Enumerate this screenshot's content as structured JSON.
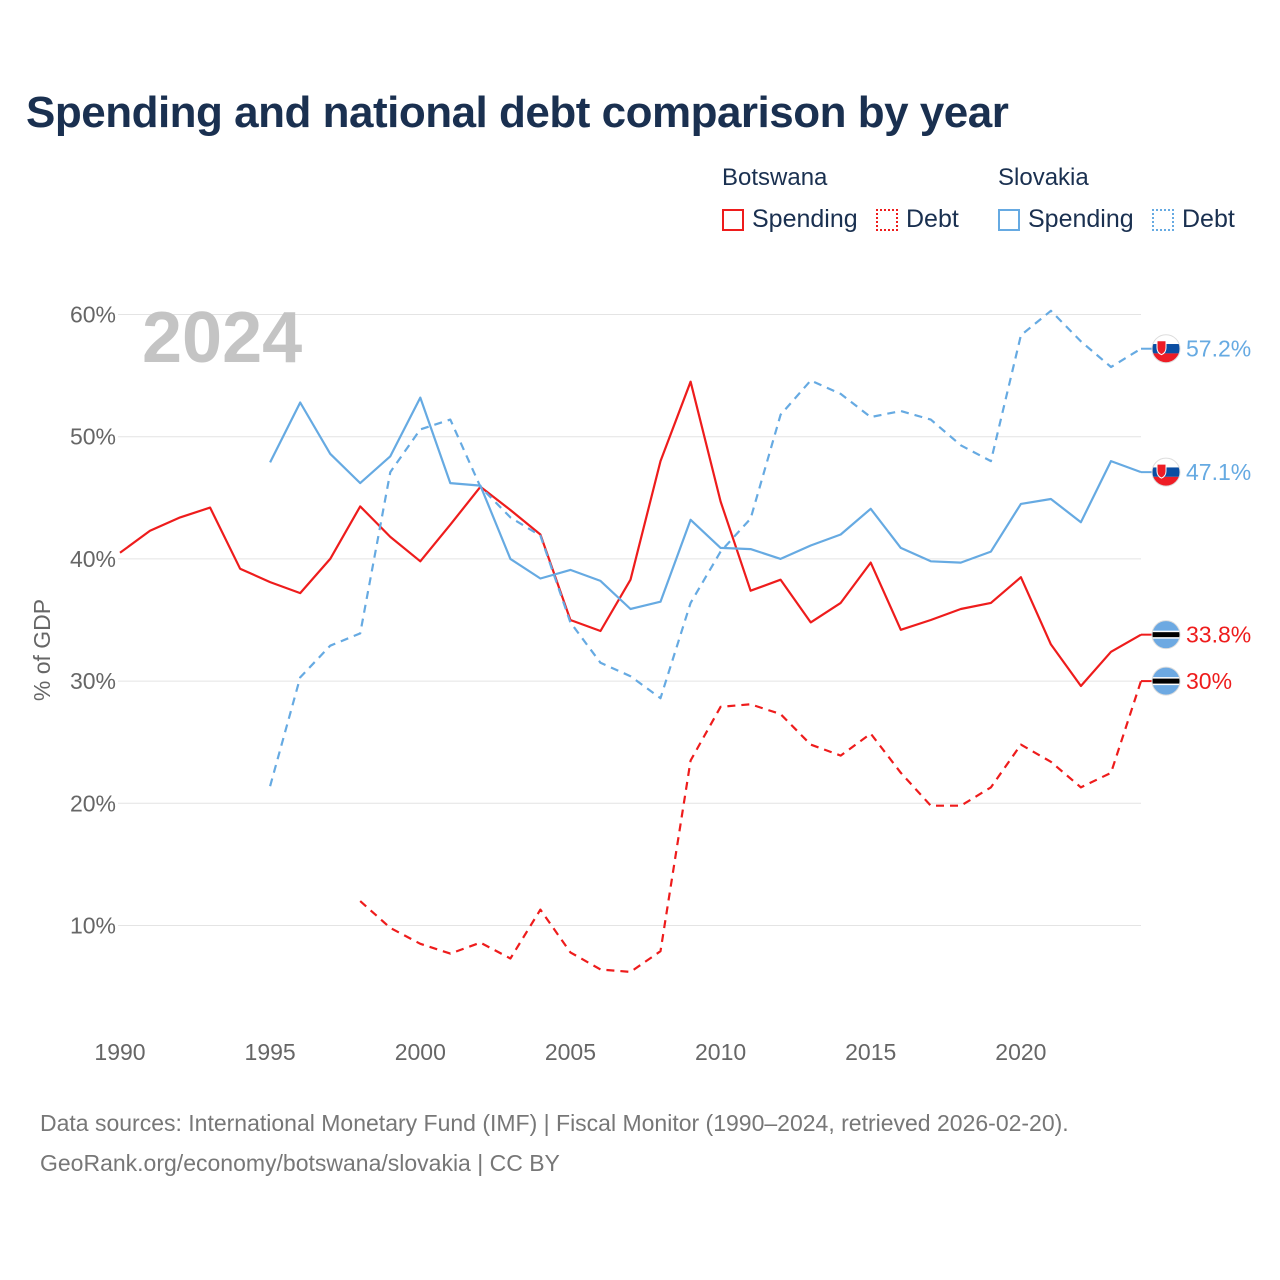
{
  "title": "Spending and national debt comparison by year",
  "legend": {
    "groups": [
      {
        "name": "Botswana",
        "color": "#ee1c1c",
        "items": [
          {
            "label": "Spending",
            "style": "solid"
          },
          {
            "label": "Debt",
            "style": "dotted"
          }
        ]
      },
      {
        "name": "Slovakia",
        "color": "#66aae2",
        "items": [
          {
            "label": "Spending",
            "style": "solid"
          },
          {
            "label": "Debt",
            "style": "dotted"
          }
        ]
      }
    ]
  },
  "chart_data": {
    "type": "line",
    "title": "Spending and national debt comparison by year",
    "year_watermark": "2024",
    "xlabel": "",
    "ylabel": "% of GDP",
    "xlim": [
      1990,
      2024
    ],
    "ylim": [
      3,
      63
    ],
    "x_ticks": [
      1990,
      1995,
      2000,
      2005,
      2010,
      2015,
      2020
    ],
    "y_ticks": [
      10,
      20,
      30,
      40,
      50,
      60
    ],
    "y_tick_labels": [
      "10%",
      "20%",
      "30%",
      "40%",
      "50%",
      "60%"
    ],
    "x_tick_labels": [
      "1990",
      "1995",
      "2000",
      "2005",
      "2010",
      "2015",
      "2020"
    ],
    "series": [
      {
        "name": "Botswana Spending",
        "country": "Botswana",
        "metric": "Spending",
        "color": "#ee1c1c",
        "dash": "solid",
        "start_year": 1990,
        "values": [
          40.5,
          42.3,
          43.4,
          44.2,
          39.2,
          38.1,
          37.2,
          40.0,
          44.3,
          41.8,
          39.8,
          42.8,
          45.9,
          44.0,
          42.0,
          35.0,
          34.1,
          38.3,
          48.0,
          54.5,
          44.7,
          37.4,
          38.3,
          34.8,
          36.4,
          39.7,
          34.2,
          35.0,
          35.9,
          36.4,
          38.5,
          33.0,
          29.6,
          32.4,
          33.8
        ],
        "end_label": "33.8%"
      },
      {
        "name": "Botswana Debt",
        "country": "Botswana",
        "metric": "Debt",
        "color": "#ee1c1c",
        "dash": "dashed",
        "start_year": 1998,
        "values": [
          12.0,
          9.8,
          8.5,
          7.7,
          8.6,
          7.3,
          11.3,
          7.8,
          6.4,
          6.2,
          7.9,
          23.5,
          27.9,
          28.1,
          27.3,
          24.8,
          23.9,
          25.7,
          22.5,
          19.8,
          19.8,
          21.3,
          24.8,
          23.4,
          21.3,
          22.5,
          30.0
        ],
        "end_label": "30%"
      },
      {
        "name": "Slovakia Spending",
        "country": "Slovakia",
        "metric": "Spending",
        "color": "#66aae2",
        "dash": "solid",
        "start_year": 1995,
        "values": [
          47.9,
          52.8,
          48.6,
          46.2,
          48.4,
          53.2,
          46.2,
          46.0,
          40.0,
          38.4,
          39.1,
          38.2,
          35.9,
          36.5,
          43.2,
          40.9,
          40.8,
          40.0,
          41.1,
          42.0,
          44.1,
          40.9,
          39.8,
          39.7,
          40.6,
          44.5,
          44.9,
          43.0,
          48.0,
          47.1
        ],
        "end_label": "47.1%"
      },
      {
        "name": "Slovakia Debt",
        "country": "Slovakia",
        "metric": "Debt",
        "color": "#66aae2",
        "dash": "dashed",
        "start_year": 1995,
        "values": [
          21.4,
          30.3,
          32.9,
          33.9,
          47.1,
          50.6,
          51.4,
          45.9,
          43.4,
          41.9,
          34.8,
          31.5,
          30.4,
          28.6,
          36.4,
          40.6,
          43.3,
          51.8,
          54.6,
          53.5,
          51.6,
          52.1,
          51.4,
          49.3,
          48.0,
          58.3,
          60.3,
          57.8,
          55.7,
          57.2
        ],
        "end_label": "57.2%"
      }
    ]
  },
  "source": {
    "line1": "Data sources: International Monetary Fund (IMF) | Fiscal Monitor (1990–2024, retrieved 2026-02-20).",
    "line2": "GeoRank.org/economy/botswana/slovakia | CC BY"
  }
}
